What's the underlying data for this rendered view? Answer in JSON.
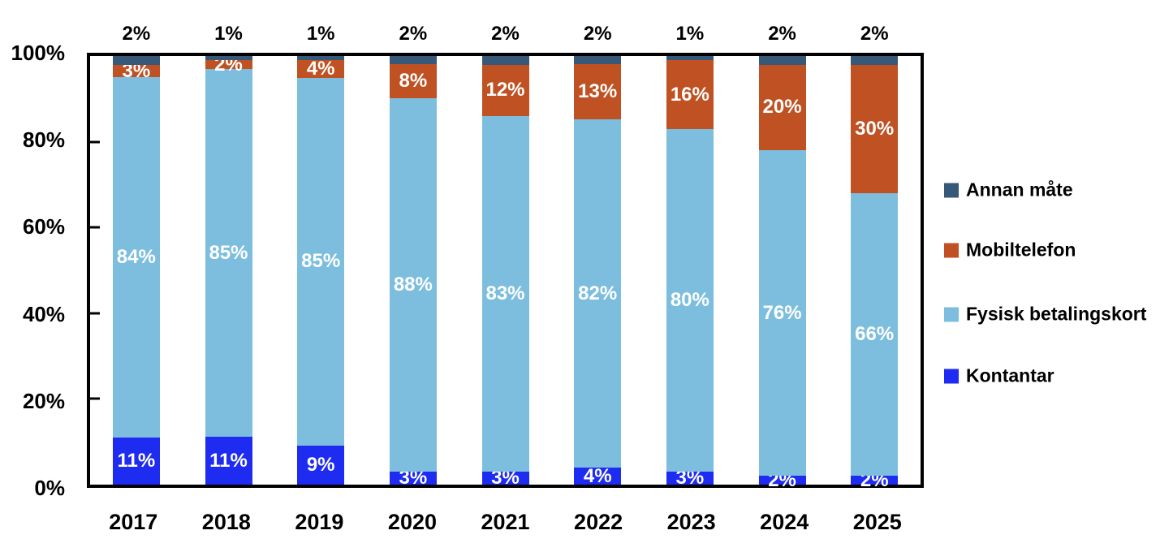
{
  "chart_data": {
    "type": "bar",
    "subtype": "100-percent-stacked-column",
    "title": "",
    "xlabel": "",
    "ylabel": "",
    "grid": false,
    "categories": [
      "2017",
      "2018",
      "2019",
      "2020",
      "2021",
      "2022",
      "2023",
      "2024",
      "2025"
    ],
    "series": [
      {
        "name": "Kontantar",
        "slug": "kontantar",
        "color": "#1E2BF0",
        "values": [
          11,
          11,
          9,
          3,
          3,
          4,
          3,
          2,
          2
        ],
        "labels": [
          "11%",
          "11%",
          "9%",
          "3%",
          "3%",
          "4%",
          "3%",
          "2%",
          "2%"
        ],
        "label_color": "#FFFFFF",
        "label_position": "inside"
      },
      {
        "name": "Fysisk betalingskort",
        "slug": "fysisk-betalingskort",
        "color": "#7DBEDF",
        "values": [
          84,
          85,
          85,
          88,
          83,
          82,
          80,
          76,
          66
        ],
        "labels": [
          "84%",
          "85%",
          "85%",
          "88%",
          "83%",
          "82%",
          "80%",
          "76%",
          "66%"
        ],
        "label_color": "#FFFFFF",
        "label_position": "inside"
      },
      {
        "name": "Mobiltelefon",
        "slug": "mobiltelefon",
        "color": "#BF5122",
        "values": [
          3,
          2,
          4,
          8,
          12,
          13,
          16,
          20,
          30
        ],
        "labels": [
          "3%",
          "2%",
          "4%",
          "8%",
          "12%",
          "13%",
          "16%",
          "20%",
          "30%"
        ],
        "label_color": "#FFFFFF",
        "label_position": "inside"
      },
      {
        "name": "Annan måte",
        "slug": "annan-mate",
        "color": "#36597A",
        "values": [
          2,
          1,
          1,
          2,
          2,
          2,
          1,
          2,
          2
        ],
        "labels": [
          "2%",
          "1%",
          "1%",
          "2%",
          "2%",
          "2%",
          "1%",
          "2%",
          "2%"
        ],
        "label_color": "#000000",
        "label_position": "above-chart"
      }
    ],
    "y_axis": {
      "ticks": [
        "100%",
        "80%",
        "60%",
        "40%",
        "20%",
        "0%"
      ],
      "range": [
        0,
        100
      ],
      "tick_step": 20
    },
    "legend": {
      "position": "right",
      "items": [
        {
          "label": "Annan måte",
          "slug": "annan-mate",
          "color": "#36597A"
        },
        {
          "label": "Mobiltelefon",
          "slug": "mobiltelefon",
          "color": "#BF5122"
        },
        {
          "label": "Fysisk betalingskort",
          "slug": "fysisk-betalingskort",
          "color": "#7DBEDF"
        },
        {
          "label": "Kontantar",
          "slug": "kontantar",
          "color": "#1E2BF0"
        }
      ]
    },
    "colors": {
      "axis": "#000000",
      "background": "#FFFFFF"
    }
  }
}
